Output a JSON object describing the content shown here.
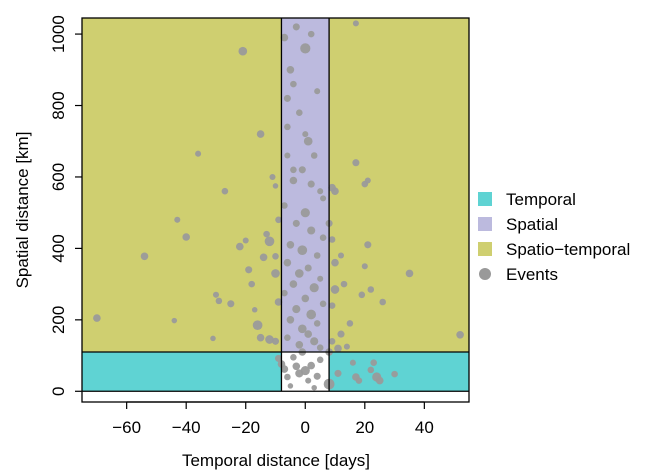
{
  "chart_data": {
    "type": "scatter",
    "xlabel": "Temporal distance [days]",
    "ylabel": "Spatial distance [km]",
    "xlim": [
      -75,
      55
    ],
    "ylim": [
      -30,
      1045
    ],
    "xticks": [
      -60,
      -40,
      -20,
      0,
      20,
      40
    ],
    "yticks": [
      0,
      200,
      400,
      600,
      800,
      1000
    ],
    "xtick_labels": [
      "−60",
      "−40",
      "−20",
      "0",
      "20",
      "40"
    ],
    "ytick_labels": [
      "0",
      "200",
      "400",
      "600",
      "800",
      "1000"
    ],
    "regions": [
      {
        "name": "Temporal",
        "color": "#5fd3d3",
        "x": [
          -75,
          55
        ],
        "y": [
          0,
          110
        ]
      },
      {
        "name": "Spatial",
        "color": "#bcbade",
        "x": [
          -8,
          8
        ],
        "y": [
          0,
          1045
        ]
      },
      {
        "name": "Spatio−temporal",
        "color": "#cfcf70",
        "x": [
          -75,
          55
        ],
        "y": [
          110,
          1045
        ]
      }
    ],
    "region_border": {
      "x_cut": [
        -8,
        8
      ],
      "y_cut": 110
    },
    "legend": {
      "placement": "right",
      "entries": [
        {
          "label": "Temporal",
          "color": "#5fd3d3",
          "shape": "square"
        },
        {
          "label": "Spatial",
          "color": "#bcbade",
          "shape": "square"
        },
        {
          "label": "Spatio−temporal",
          "color": "#cfcf70",
          "shape": "square"
        },
        {
          "label": "Events",
          "color": "#999999",
          "shape": "circle"
        }
      ]
    },
    "events": {
      "color": "#9a9a9a",
      "points": [
        [
          -70,
          205,
          1
        ],
        [
          -54,
          378,
          1
        ],
        [
          -44,
          198,
          0.6
        ],
        [
          -43,
          480,
          0.7
        ],
        [
          -40,
          432,
          1
        ],
        [
          -36,
          665,
          0.7
        ],
        [
          -31,
          148,
          0.6
        ],
        [
          -30,
          270,
          0.7
        ],
        [
          -29,
          253,
          0.8
        ],
        [
          -27,
          560,
          0.8
        ],
        [
          -25,
          245,
          0.9
        ],
        [
          -22,
          405,
          1
        ],
        [
          -21,
          952,
          1.2
        ],
        [
          -20,
          422,
          0.7
        ],
        [
          -19,
          340,
          0.9
        ],
        [
          -18,
          300,
          0.8
        ],
        [
          -17,
          228,
          0.6
        ],
        [
          -16,
          185,
          1.4
        ],
        [
          -15,
          720,
          1
        ],
        [
          -15,
          150,
          1
        ],
        [
          -14,
          375,
          1
        ],
        [
          -13,
          440,
          0.8
        ],
        [
          -12,
          420,
          1.4
        ],
        [
          -12,
          145,
          1.2
        ],
        [
          -11,
          600,
          0.7
        ],
        [
          -10,
          575,
          0.6
        ],
        [
          -10,
          378,
          0.8
        ],
        [
          -10,
          330,
          1.2
        ],
        [
          -10,
          140,
          0.9
        ],
        [
          -9,
          480,
          0.8
        ],
        [
          -9,
          250,
          1
        ],
        [
          -9,
          92,
          0.9
        ],
        [
          -8,
          76,
          1
        ],
        [
          -7,
          62,
          1
        ],
        [
          -6,
          40,
          0.8
        ],
        [
          -5,
          15,
          0.6
        ],
        [
          -4,
          95,
          0.8
        ],
        [
          -3,
          70,
          1
        ],
        [
          -2,
          50,
          1.1
        ],
        [
          -1,
          110,
          1
        ],
        [
          0,
          58,
          1.3
        ],
        [
          1,
          30,
          0.7
        ],
        [
          2,
          72,
          1
        ],
        [
          3,
          10,
          0.6
        ],
        [
          4,
          42,
          0.9
        ],
        [
          5,
          88,
          0.8
        ],
        [
          -7,
          990,
          1
        ],
        [
          -5,
          900,
          1
        ],
        [
          -4,
          860,
          0.8
        ],
        [
          -3,
          1020,
          0.9
        ],
        [
          -6,
          820,
          0.9
        ],
        [
          0,
          960,
          1.5
        ],
        [
          2,
          1000,
          0.8
        ],
        [
          -2,
          780,
          0.8
        ],
        [
          4,
          840,
          0.7
        ],
        [
          -6,
          740,
          0.8
        ],
        [
          1,
          700,
          1.2
        ],
        [
          -1,
          620,
          0.9
        ],
        [
          3,
          660,
          0.8
        ],
        [
          -4,
          590,
          1
        ],
        [
          5,
          560,
          0.7
        ],
        [
          -7,
          520,
          0.8
        ],
        [
          0,
          500,
          1.3
        ],
        [
          -3,
          470,
          0.9
        ],
        [
          2,
          450,
          1.1
        ],
        [
          6,
          430,
          0.8
        ],
        [
          -5,
          410,
          1
        ],
        [
          -1,
          395,
          1.4
        ],
        [
          4,
          380,
          0.8
        ],
        [
          -6,
          360,
          1
        ],
        [
          1,
          345,
          0.9
        ],
        [
          -2,
          330,
          1.2
        ],
        [
          5,
          315,
          0.7
        ],
        [
          -4,
          300,
          1
        ],
        [
          3,
          290,
          1.3
        ],
        [
          -7,
          275,
          0.8
        ],
        [
          0,
          260,
          1
        ],
        [
          6,
          245,
          0.8
        ],
        [
          -3,
          230,
          1.1
        ],
        [
          2,
          215,
          1.4
        ],
        [
          -5,
          200,
          1
        ],
        [
          4,
          190,
          0.8
        ],
        [
          -1,
          175,
          1.2
        ],
        [
          1,
          160,
          1
        ],
        [
          -6,
          150,
          0.8
        ],
        [
          3,
          140,
          1.1
        ],
        [
          -2,
          130,
          1
        ],
        [
          5,
          122,
          0.8
        ],
        [
          -4,
          620,
          0.8
        ],
        [
          2,
          580,
          0.9
        ],
        [
          6,
          540,
          0.7
        ],
        [
          -6,
          660,
          0.7
        ],
        [
          0,
          720,
          0.7
        ],
        [
          8,
          20,
          1.6
        ],
        [
          8,
          110,
          1
        ],
        [
          9,
          425,
          0.8
        ],
        [
          9,
          240,
          0.8
        ],
        [
          9,
          140,
          0.8
        ],
        [
          10,
          560,
          1
        ],
        [
          10,
          360,
          1
        ],
        [
          10,
          285,
          1.2
        ],
        [
          11,
          120,
          1
        ],
        [
          11,
          50,
          0.9
        ],
        [
          12,
          380,
          0.7
        ],
        [
          12,
          160,
          0.9
        ],
        [
          13,
          300,
          0.8
        ],
        [
          14,
          125,
          0.7
        ],
        [
          15,
          190,
          0.8
        ],
        [
          16,
          80,
          0.7
        ],
        [
          17,
          40,
          1
        ],
        [
          17,
          640,
          0.9
        ],
        [
          17,
          1030,
          0.7
        ],
        [
          18,
          30,
          0.8
        ],
        [
          19,
          270,
          0.8
        ],
        [
          20,
          580,
          0.8
        ],
        [
          20,
          350,
          0.7
        ],
        [
          21,
          410,
          0.9
        ],
        [
          21,
          590,
          0.7
        ],
        [
          22,
          285,
          0.8
        ],
        [
          22,
          60,
          0.8
        ],
        [
          23,
          80,
          0.8
        ],
        [
          24,
          40,
          1.3
        ],
        [
          25,
          30,
          1
        ],
        [
          26,
          250,
          0.8
        ],
        [
          30,
          48,
          0.8
        ],
        [
          35,
          330,
          1
        ],
        [
          52,
          158,
          1
        ],
        [
          8,
          470,
          0.9
        ],
        [
          9,
          570,
          1
        ]
      ]
    }
  }
}
